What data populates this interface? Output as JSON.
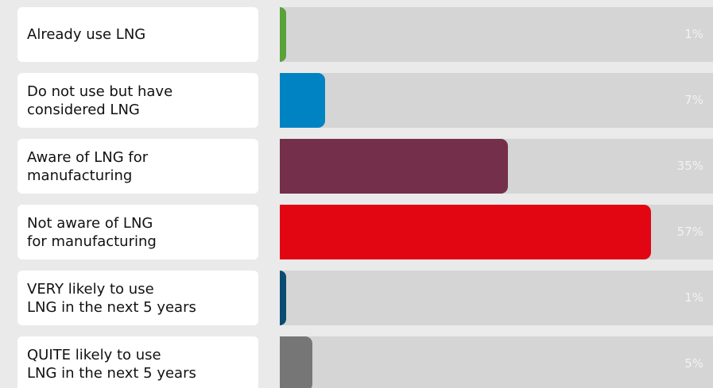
{
  "chart_data": {
    "type": "bar",
    "orientation": "horizontal",
    "categories": [
      "Already use LNG",
      "Do not use but have\nconsidered LNG",
      "Aware of LNG for\nmanufacturing",
      "Not aware of LNG\nfor manufacturing",
      "VERY likely to use\nLNG in the next 5 years",
      "QUITE likely to use\nLNG in the next 5 years"
    ],
    "values": [
      1,
      7,
      35,
      57,
      1,
      5
    ],
    "value_labels": [
      "1%",
      "7%",
      "35%",
      "57%",
      "1%",
      "5%"
    ],
    "colors": [
      "#5aa13a",
      "#0083c3",
      "#74304a",
      "#e20613",
      "#0b4b70",
      "#767676"
    ],
    "xlim": [
      0,
      100
    ]
  }
}
